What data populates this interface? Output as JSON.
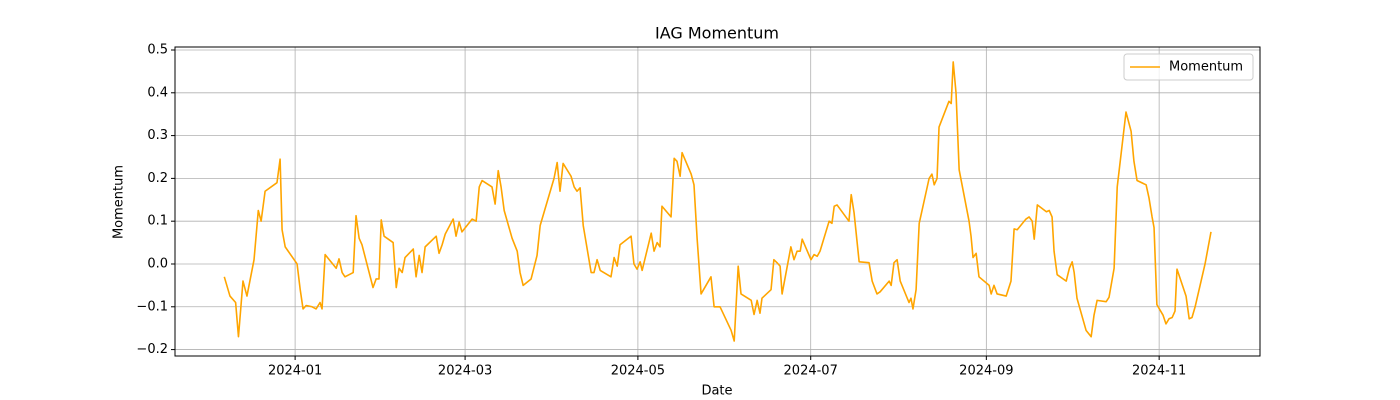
{
  "chart_data": {
    "type": "line",
    "title": "IAG Momentum",
    "x_label": "Date",
    "y_label": "Momentum",
    "xlim": [
      -42.4,
      340.6
    ],
    "ylim": [
      -0.215,
      0.507
    ],
    "xticks": [
      {
        "value": 0,
        "label": "2024-01"
      },
      {
        "value": 60,
        "label": "2024-03"
      },
      {
        "value": 121,
        "label": "2024-05"
      },
      {
        "value": 182,
        "label": "2024-07"
      },
      {
        "value": 244,
        "label": "2024-09"
      },
      {
        "value": 305,
        "label": "2024-11"
      }
    ],
    "yticks": [
      {
        "value": -0.2,
        "label": "−0.2"
      },
      {
        "value": -0.1,
        "label": "−0.1"
      },
      {
        "value": 0,
        "label": "0.0"
      },
      0.1,
      0.2,
      0.3,
      0.4,
      0.5
    ],
    "grid": true,
    "legend": "upper right",
    "x": [
      -25,
      -23,
      -21,
      -20,
      -18.4,
      -17,
      -14.5,
      -13,
      -12,
      -10.6,
      -6.4,
      -5.3,
      -4.6,
      -3.5,
      0.7,
      1.8,
      2.8,
      3.9,
      6,
      7.4,
      8.8,
      9.5,
      10.6,
      14.5,
      15.5,
      16.6,
      17.6,
      20.5,
      21.5,
      22.6,
      23.6,
      27.5,
      28.6,
      29.6,
      30.4,
      31.4,
      34.6,
      35.7,
      36.7,
      37.8,
      38.8,
      41.7,
      42.7,
      43.8,
      44.8,
      45.9,
      49.8,
      50.8,
      51.9,
      53,
      55.8,
      56.8,
      57.9,
      58.9,
      62.5,
      63.9,
      65,
      66,
      69.5,
      70.6,
      71.7,
      72.7,
      73.8,
      76.6,
      78.4,
      79.4,
      80.5,
      83.3,
      85.4,
      86.5,
      91.4,
      92.5,
      93.5,
      94.6,
      97.4,
      98.5,
      99.5,
      100.6,
      101.7,
      104.5,
      105.5,
      106.6,
      107.7,
      111.5,
      112.6,
      113.7,
      114.7,
      118.6,
      119.6,
      120.7,
      121.8,
      122.5,
      125.7,
      126.7,
      127.8,
      128.8,
      129.5,
      132.7,
      133.8,
      134.8,
      135.9,
      136.6,
      139.8,
      140.8,
      141.9,
      143.3,
      146.8,
      147.9,
      150,
      153.9,
      155,
      156.4,
      157.4,
      161,
      162,
      163.1,
      164.1,
      164.8,
      168,
      169,
      170.1,
      171.2,
      171.9,
      175,
      176.1,
      177.2,
      178.3,
      179,
      182.1,
      183.2,
      184.3,
      185.3,
      188.5,
      189.5,
      190.3,
      191.3,
      195.5,
      196.3,
      197.3,
      199.1,
      202.6,
      203.7,
      205.4,
      206.5,
      209.7,
      210.4,
      211.4,
      212.5,
      213.6,
      216.7,
      217.4,
      218.1,
      219.2,
      220.3,
      223.8,
      224.8,
      225.6,
      226.6,
      227.3,
      230.8,
      231.6,
      232.3,
      233.3,
      234.4,
      237.9,
      238.6,
      239.3,
      240.4,
      241.4,
      245,
      245.7,
      246.7,
      247.8,
      251,
      252.7,
      253.8,
      254.9,
      258,
      259.1,
      260.2,
      260.9,
      262,
      265.2,
      266.2,
      267.2,
      267.9,
      269,
      272.2,
      273.3,
      274.3,
      275,
      276,
      279.2,
      281,
      282,
      283.1,
      286.3,
      287.3,
      289.1,
      290.2,
      293.3,
      295.1,
      296.1,
      297.2,
      300.4,
      301.4,
      302.5,
      303.2,
      304.2,
      306.4,
      307.4,
      308.5,
      309.6,
      310.6,
      311.3,
      314.5,
      315.6,
      316.6,
      317.7,
      321.2,
      323.3
    ],
    "series": [
      {
        "name": "Momentum",
        "color": "#ffa500",
        "values": [
          -0.03,
          -0.075,
          -0.09,
          -0.17,
          -0.04,
          -0.075,
          0.01,
          0.125,
          0.1,
          0.17,
          0.19,
          0.245,
          0.08,
          0.04,
          0.0,
          -0.06,
          -0.105,
          -0.097,
          -0.1,
          -0.105,
          -0.09,
          -0.105,
          0.022,
          -0.01,
          0.012,
          -0.02,
          -0.03,
          -0.02,
          0.113,
          0.06,
          0.045,
          -0.055,
          -0.035,
          -0.035,
          0.103,
          0.065,
          0.05,
          -0.055,
          -0.01,
          -0.02,
          0.015,
          0.035,
          -0.03,
          0.02,
          -0.02,
          0.04,
          0.065,
          0.025,
          0.045,
          0.07,
          0.105,
          0.065,
          0.098,
          0.075,
          0.105,
          0.1,
          0.18,
          0.195,
          0.18,
          0.14,
          0.218,
          0.18,
          0.125,
          0.06,
          0.03,
          -0.02,
          -0.05,
          -0.035,
          0.02,
          0.09,
          0.2,
          0.237,
          0.17,
          0.235,
          0.205,
          0.18,
          0.17,
          0.178,
          0.09,
          -0.02,
          -0.02,
          0.01,
          -0.015,
          -0.03,
          0.015,
          -0.005,
          0.045,
          0.065,
          0.0,
          -0.012,
          0.005,
          -0.015,
          0.072,
          0.03,
          0.05,
          0.04,
          0.135,
          0.11,
          0.247,
          0.24,
          0.205,
          0.26,
          0.21,
          0.185,
          0.06,
          -0.07,
          -0.03,
          -0.1,
          -0.1,
          -0.155,
          -0.18,
          -0.005,
          -0.07,
          -0.085,
          -0.118,
          -0.085,
          -0.115,
          -0.08,
          -0.06,
          0.01,
          0.003,
          -0.005,
          -0.07,
          0.04,
          0.01,
          0.03,
          0.03,
          0.058,
          0.01,
          0.022,
          0.018,
          0.03,
          0.1,
          0.095,
          0.135,
          0.138,
          0.1,
          0.162,
          0.12,
          0.005,
          0.003,
          -0.04,
          -0.07,
          -0.065,
          -0.04,
          -0.05,
          0.003,
          0.01,
          -0.04,
          -0.09,
          -0.08,
          -0.105,
          -0.06,
          0.095,
          0.2,
          0.21,
          0.185,
          0.2,
          0.32,
          0.38,
          0.375,
          0.472,
          0.4,
          0.22,
          0.1,
          0.065,
          0.015,
          0.025,
          -0.03,
          -0.05,
          -0.07,
          -0.05,
          -0.07,
          -0.075,
          -0.04,
          0.082,
          0.08,
          0.105,
          0.11,
          0.1,
          0.058,
          0.138,
          0.122,
          0.125,
          0.11,
          0.03,
          -0.025,
          -0.04,
          -0.01,
          0.005,
          -0.02,
          -0.08,
          -0.155,
          -0.17,
          -0.12,
          -0.085,
          -0.088,
          -0.078,
          -0.01,
          0.18,
          0.355,
          0.31,
          0.24,
          0.195,
          0.185,
          0.155,
          0.11,
          0.085,
          -0.095,
          -0.12,
          -0.14,
          -0.128,
          -0.125,
          -0.11,
          -0.012,
          -0.075,
          -0.128,
          -0.125,
          -0.1,
          0.0,
          0.075
        ]
      }
    ]
  }
}
